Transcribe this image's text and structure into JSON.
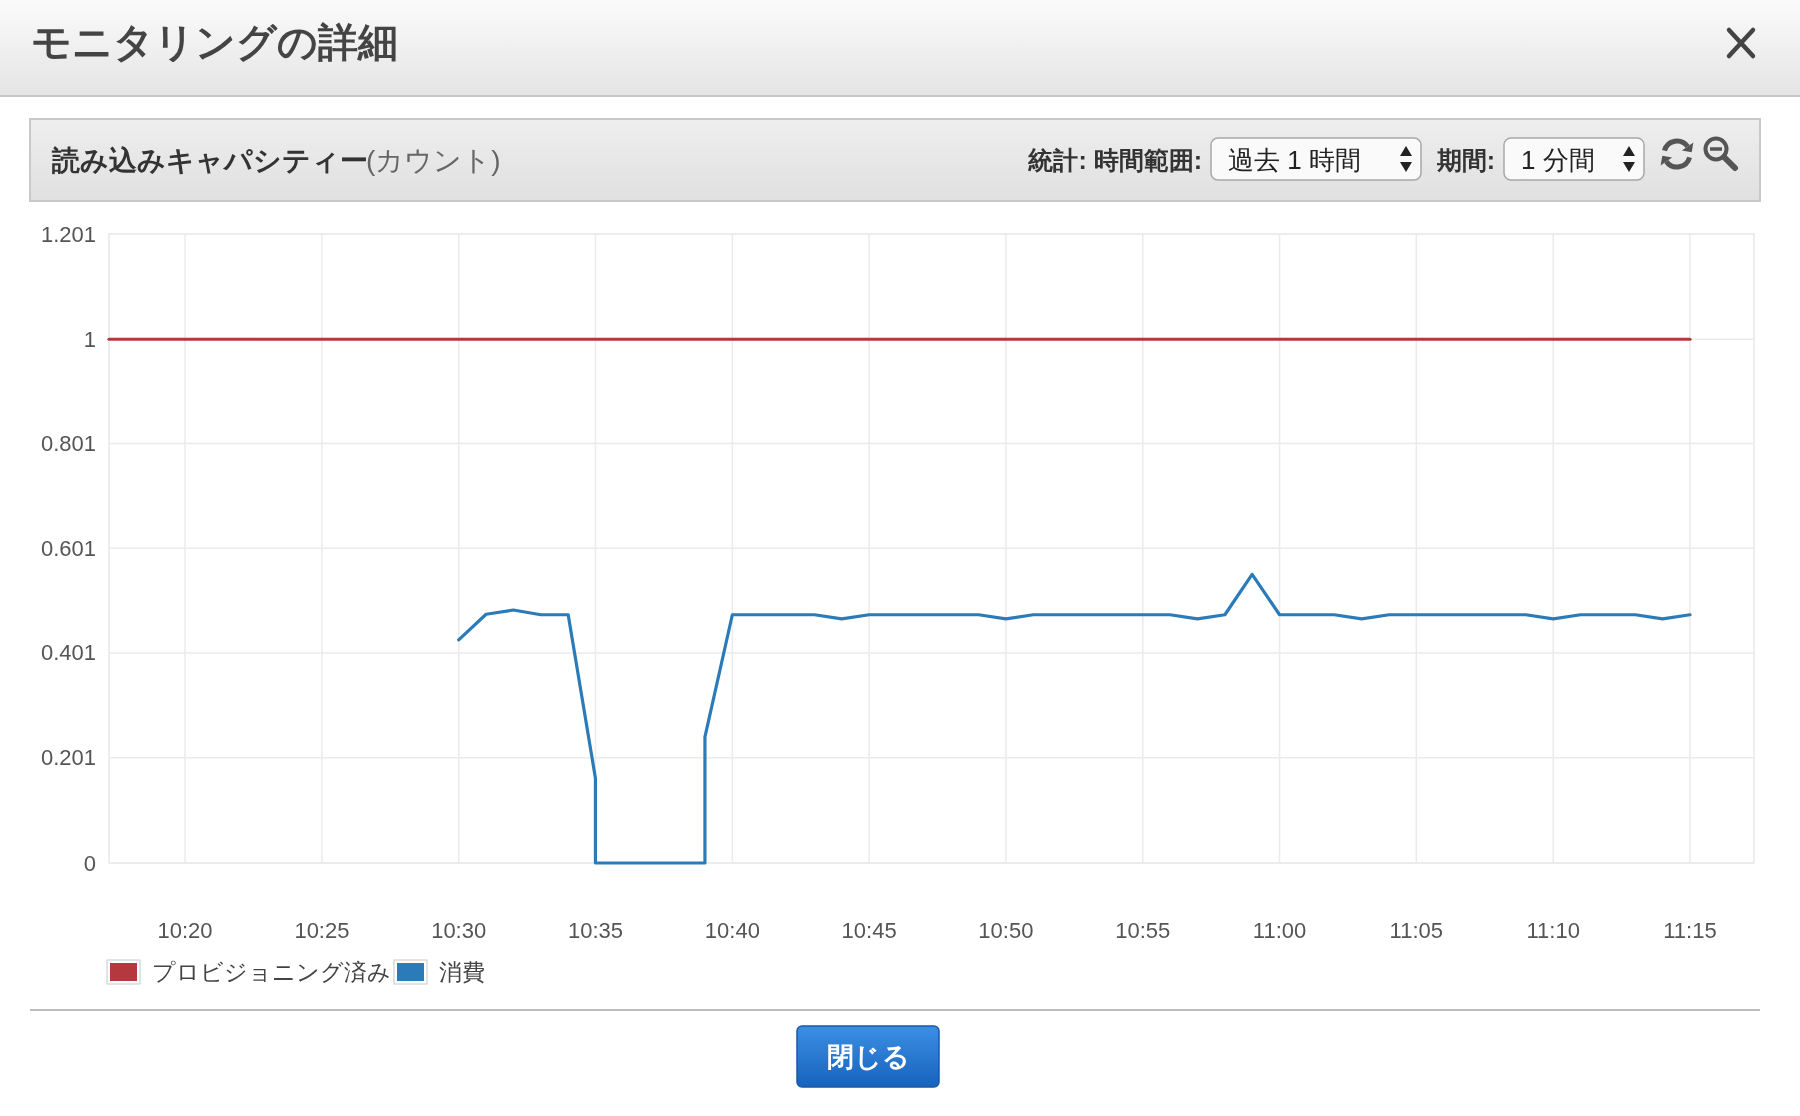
{
  "chart_data": {
    "type": "line",
    "title": "モニタリングの詳細",
    "subtitle": "読み込みキャパシティー",
    "ylabel": "(カウント)",
    "annotations": [
      "統計: 時間範囲:",
      "過去 1 時間",
      "期間:",
      "1 分間",
      "閉じる"
    ],
    "xlim": [
      10.287,
      11.289
    ],
    "xticks": [
      {
        "value": 10.3333,
        "label": "10:20"
      },
      {
        "value": 10.4167,
        "label": "10:25"
      },
      {
        "value": 10.5,
        "label": "10:30"
      },
      {
        "value": 10.5833,
        "label": "10:35"
      },
      {
        "value": 10.6667,
        "label": "10:40"
      },
      {
        "value": 10.75,
        "label": "10:45"
      },
      {
        "value": 10.8333,
        "label": "10:50"
      },
      {
        "value": 10.9167,
        "label": "10:55"
      },
      {
        "value": 11,
        "label": "11:00"
      },
      {
        "value": 11.0833,
        "label": "11:05"
      },
      {
        "value": 11.1667,
        "label": "11:10"
      },
      {
        "value": 11.25,
        "label": "11:15"
      }
    ],
    "ylim": [
      0,
      1.201
    ],
    "yticks": [
      0,
      0.201,
      0.401,
      0.601,
      0.801,
      1,
      1.201
    ],
    "grid": true,
    "legend": "bottom left",
    "line_style": "solid",
    "series": [
      {
        "name": "プロビジョニング済み",
        "color": "#b5383f",
        "x": [
          10.287,
          11.25
        ],
        "values": [
          1,
          1
        ]
      },
      {
        "name": "消費",
        "color": "#2b7bb9",
        "x": [
          10.5,
          10.5167,
          10.5333,
          10.55,
          10.5667,
          10.5833,
          10.5833,
          10.6,
          10.6167,
          10.6333,
          10.65,
          10.65,
          10.6667,
          10.6833,
          10.7,
          10.7167,
          10.7333,
          10.75,
          10.7667,
          10.7833,
          10.8,
          10.8167,
          10.8333,
          10.85,
          10.8667,
          10.8833,
          10.9,
          10.9167,
          10.9333,
          10.95,
          10.9667,
          10.9833,
          11,
          11.0167,
          11.0333,
          11.05,
          11.0667,
          11.0833,
          11.1,
          11.1167,
          11.1333,
          11.15,
          11.1667,
          11.1833,
          11.2,
          11.2167,
          11.2333,
          11.25
        ],
        "values": [
          0.426,
          0.475,
          0.483,
          0.474,
          0.474,
          0.162,
          0,
          0,
          0,
          0,
          0,
          0.241,
          0.474,
          0.474,
          0.474,
          0.474,
          0.466,
          0.474,
          0.474,
          0.474,
          0.474,
          0.474,
          0.466,
          0.474,
          0.474,
          0.474,
          0.474,
          0.474,
          0.474,
          0.466,
          0.474,
          0.551,
          0.474,
          0.474,
          0.474,
          0.466,
          0.474,
          0.474,
          0.474,
          0.474,
          0.474,
          0.474,
          0.466,
          0.474,
          0.474,
          0.474,
          0.466,
          0.474
        ]
      }
    ]
  }
}
